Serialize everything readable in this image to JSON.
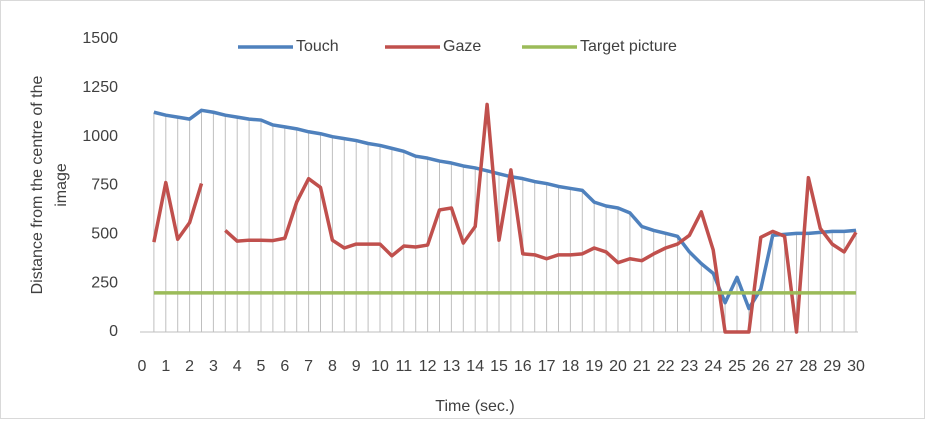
{
  "chart_data": {
    "type": "line",
    "x_label": "Time (sec.)",
    "y_label": [
      "Distance from the centre of the",
      "image"
    ],
    "x": [
      0.5,
      1,
      1.5,
      2,
      2.5,
      3,
      3.5,
      4,
      4.5,
      5,
      5.5,
      6,
      6.5,
      7,
      7.5,
      8,
      8.5,
      9,
      9.5,
      10,
      10.5,
      11,
      11.5,
      12,
      12.5,
      13,
      13.5,
      14,
      14.5,
      15,
      15.5,
      16,
      16.5,
      17,
      17.5,
      18,
      18.5,
      19,
      19.5,
      20,
      20.5,
      21,
      21.5,
      22,
      22.5,
      23,
      23.5,
      24,
      24.5,
      25,
      25.5,
      26,
      26.5,
      27,
      27.5,
      28,
      28.5,
      29,
      29.5,
      30
    ],
    "series": [
      {
        "name": "Touch",
        "color": "#4f81bd",
        "values": [
          1125,
          1110,
          1100,
          1090,
          1135,
          1125,
          1110,
          1100,
          1090,
          1085,
          1060,
          1050,
          1040,
          1025,
          1015,
          1000,
          990,
          980,
          965,
          955,
          940,
          925,
          900,
          890,
          875,
          865,
          850,
          840,
          825,
          810,
          795,
          785,
          770,
          760,
          745,
          735,
          725,
          665,
          645,
          635,
          610,
          540,
          520,
          505,
          490,
          410,
          350,
          300,
          150,
          280,
          120,
          220,
          495,
          500,
          505,
          505,
          510,
          515,
          515,
          520
        ]
      },
      {
        "name": "Gaze",
        "color": "#c0504d",
        "values": [
          460,
          765,
          475,
          560,
          760,
          null,
          520,
          465,
          470,
          470,
          468,
          480,
          665,
          785,
          740,
          470,
          430,
          450,
          450,
          450,
          390,
          440,
          435,
          445,
          625,
          635,
          455,
          540,
          1165,
          470,
          830,
          400,
          395,
          375,
          395,
          395,
          400,
          430,
          410,
          355,
          375,
          365,
          400,
          430,
          450,
          495,
          615,
          420,
          0,
          0,
          0,
          485,
          515,
          490,
          0,
          790,
          530,
          450,
          410,
          510
        ]
      },
      {
        "name": "Target picture",
        "color": "#9bbb59",
        "values": [
          200,
          200,
          200,
          200,
          200,
          200,
          200,
          200,
          200,
          200,
          200,
          200,
          200,
          200,
          200,
          200,
          200,
          200,
          200,
          200,
          200,
          200,
          200,
          200,
          200,
          200,
          200,
          200,
          200,
          200,
          200,
          200,
          200,
          200,
          200,
          200,
          200,
          200,
          200,
          200,
          200,
          200,
          200,
          200,
          200,
          200,
          200,
          200,
          200,
          200,
          200,
          200,
          200,
          200,
          200,
          200,
          200,
          200,
          200,
          200
        ]
      }
    ],
    "xlim": [
      0,
      30
    ],
    "xticks": [
      0,
      1,
      2,
      3,
      4,
      5,
      6,
      7,
      8,
      9,
      10,
      11,
      12,
      13,
      14,
      15,
      16,
      17,
      18,
      19,
      20,
      21,
      22,
      23,
      24,
      25,
      26,
      27,
      28,
      29,
      30
    ],
    "ylim": [
      0,
      1500
    ],
    "yticks": [
      0,
      250,
      500,
      750,
      1000,
      1250,
      1500
    ],
    "drop_lines": true,
    "legend": "top"
  }
}
